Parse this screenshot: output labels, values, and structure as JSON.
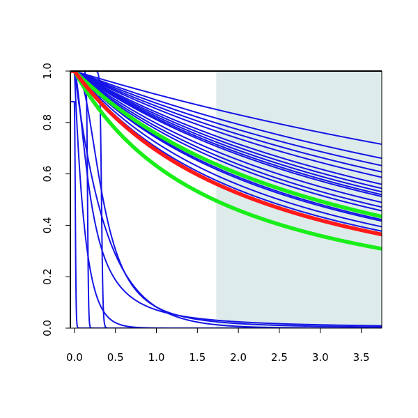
{
  "chart_data": {
    "type": "line",
    "title": "",
    "xlabel": "",
    "ylabel": "",
    "xlim": [
      -0.05,
      3.75
    ],
    "ylim": [
      0,
      1
    ],
    "x_ticks": [
      "0.0",
      "0.5",
      "1.0",
      "1.5",
      "2.0",
      "2.5",
      "3.0",
      "3.5"
    ],
    "y_ticks": [
      "0.0",
      "0.2",
      "0.4",
      "0.6",
      "0.8",
      "1.0"
    ],
    "shaded_region": {
      "x_from": 1.73,
      "x_to": 3.75,
      "color": "#deebeb"
    },
    "colors": {
      "blue": "#1515e6",
      "red": "#ff1a1a",
      "green": "#1aee1a"
    },
    "series": [
      {
        "color": "blue",
        "kind": "power",
        "params": [
          0.05,
          1.95
        ],
        "weight": "thin"
      },
      {
        "color": "blue",
        "kind": "power",
        "params": [
          0.065,
          1.9
        ],
        "weight": "thin"
      },
      {
        "color": "blue",
        "kind": "power",
        "params": [
          0.075,
          1.85
        ],
        "weight": "thin"
      },
      {
        "color": "blue",
        "kind": "power",
        "params": [
          0.085,
          1.8
        ],
        "weight": "thin"
      },
      {
        "color": "blue",
        "kind": "power",
        "params": [
          0.095,
          1.75
        ],
        "weight": "thin"
      },
      {
        "color": "blue",
        "kind": "power",
        "params": [
          0.105,
          1.75
        ],
        "weight": "thin"
      },
      {
        "color": "blue",
        "kind": "power",
        "params": [
          0.115,
          1.7
        ],
        "weight": "thin"
      },
      {
        "color": "blue",
        "kind": "power",
        "params": [
          0.125,
          1.65
        ],
        "weight": "thin"
      },
      {
        "color": "blue",
        "kind": "power",
        "params": [
          0.135,
          1.6
        ],
        "weight": "thin"
      },
      {
        "color": "blue",
        "kind": "power",
        "params": [
          0.15,
          1.5
        ],
        "weight": "thin"
      },
      {
        "color": "blue",
        "kind": "power",
        "params": [
          0.17,
          1.45
        ],
        "weight": "thin"
      },
      {
        "color": "blue",
        "kind": "power",
        "params": [
          0.19,
          1.4
        ],
        "weight": "thin"
      },
      {
        "color": "blue",
        "kind": "power",
        "params": [
          0.21,
          1.35
        ],
        "weight": "thin"
      },
      {
        "color": "blue",
        "kind": "power",
        "params": [
          0.24,
          1.3
        ],
        "weight": "thin"
      },
      {
        "color": "blue",
        "kind": "power",
        "params": [
          0.265,
          1.25
        ],
        "weight": "thin"
      },
      {
        "color": "blue",
        "kind": "power",
        "params": [
          0.28,
          1.22
        ],
        "weight": "thin"
      },
      {
        "color": "blue",
        "kind": "power",
        "params": [
          0.32,
          1.18
        ],
        "weight": "thin"
      },
      {
        "color": "blue",
        "kind": "power",
        "params": [
          0.37,
          1.12
        ],
        "weight": "thin"
      },
      {
        "color": "blue",
        "kind": "hill",
        "params": [
          0.2,
          1.6
        ],
        "weight": "thin"
      },
      {
        "color": "blue",
        "kind": "hill",
        "params": [
          0.35,
          2.3
        ],
        "weight": "thin"
      },
      {
        "color": "blue",
        "kind": "exp",
        "params": [
          0.4
        ],
        "weight": "thin"
      },
      {
        "color": "blue",
        "kind": "exp",
        "params": [
          0.13
        ],
        "weight": "thin"
      },
      {
        "color": "blue",
        "kind": "step",
        "params": [
          0.01,
          0.005
        ],
        "weight": "thin"
      },
      {
        "color": "blue",
        "kind": "step",
        "params": [
          0.16,
          0.006
        ],
        "weight": "thin"
      },
      {
        "color": "blue",
        "kind": "step",
        "params": [
          0.33,
          0.009
        ],
        "weight": "thin"
      },
      {
        "color": "green",
        "kind": "power",
        "params": [
          0.24,
          1.3
        ],
        "weight": "thick"
      },
      {
        "color": "green",
        "kind": "power",
        "params": [
          0.55,
          1.05
        ],
        "weight": "thick"
      },
      {
        "color": "red",
        "kind": "power",
        "params": [
          0.39,
          1.12
        ],
        "weight": "thick"
      }
    ]
  }
}
